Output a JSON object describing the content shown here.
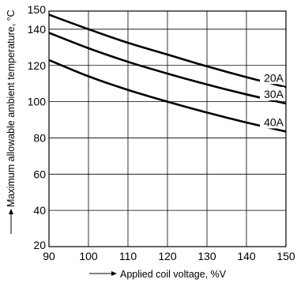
{
  "chart_data": {
    "type": "line",
    "xlabel": "Applied coil voltage, %V",
    "ylabel": "Maximum allowable ambient temperature, °C",
    "xlim": [
      90,
      150
    ],
    "ylim": [
      20,
      150
    ],
    "x_ticks": [
      90,
      100,
      110,
      120,
      130,
      140,
      150
    ],
    "y_ticks": [
      20,
      40,
      60,
      80,
      100,
      120,
      140,
      150
    ],
    "grid": true,
    "series": [
      {
        "name": "20A",
        "x": [
          90,
          100,
          110,
          120,
          130,
          140,
          150
        ],
        "y": [
          148,
          140,
          132.5,
          126,
          119.5,
          113.5,
          108
        ]
      },
      {
        "name": "30A",
        "x": [
          90,
          100,
          110,
          120,
          130,
          140,
          150
        ],
        "y": [
          138,
          129.5,
          122,
          115.5,
          109.5,
          104,
          99
        ]
      },
      {
        "name": "40A",
        "x": [
          90,
          100,
          110,
          120,
          130,
          140,
          150
        ],
        "y": [
          123,
          114,
          106.5,
          100,
          94,
          88.5,
          83.5
        ]
      }
    ]
  }
}
